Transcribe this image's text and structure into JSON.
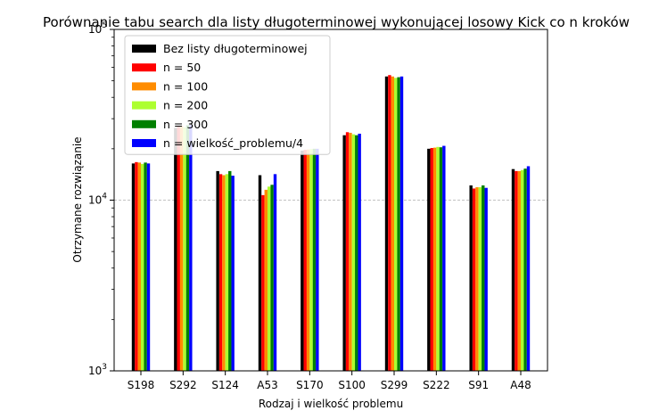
{
  "chart_data": {
    "type": "bar",
    "title": "Porównanie tabu search dla listy długoterminowej wykonującej losowy Kick co n kroków",
    "xlabel": "Rodzaj i wielkość problemu",
    "ylabel": "Otrzymane rozwiązanie",
    "yscale": "log",
    "ylim": [
      1000,
      100000
    ],
    "ytick_labels": [
      {
        "value": 1000,
        "base": "10",
        "exp": "3"
      },
      {
        "value": 10000,
        "base": "10",
        "exp": "4"
      },
      {
        "value": 100000,
        "base": "10",
        "exp": "5"
      }
    ],
    "grid": "horizontal dashed at major ticks",
    "legend_position": "top-left",
    "categories": [
      "S198",
      "S292",
      "S124",
      "A53",
      "S170",
      "S100",
      "S299",
      "S222",
      "S91",
      "A48"
    ],
    "series": [
      {
        "name": "Bez listy długoterminowej",
        "color": "#000000",
        "values": [
          16400,
          26500,
          14800,
          14000,
          19500,
          24000,
          53000,
          20000,
          12200,
          15200
        ]
      },
      {
        "name": "n = 50",
        "color": "#ff0000",
        "values": [
          16700,
          27000,
          14200,
          10700,
          19700,
          25000,
          54000,
          20200,
          11700,
          14800
        ]
      },
      {
        "name": "n = 100",
        "color": "#ff8c00",
        "values": [
          16600,
          27200,
          14000,
          11500,
          19800,
          24800,
          53000,
          20300,
          11900,
          14800
        ]
      },
      {
        "name": "n = 200",
        "color": "#adff2f",
        "values": [
          16300,
          26700,
          14200,
          12000,
          19900,
          24300,
          52000,
          20500,
          11900,
          15000
        ]
      },
      {
        "name": "n = 300",
        "color": "#008000",
        "values": [
          16600,
          27500,
          14800,
          12300,
          20000,
          24000,
          52500,
          20400,
          12200,
          15300
        ]
      },
      {
        "name": "n = wielkość_problemu/4",
        "color": "#0000ff",
        "values": [
          16400,
          27600,
          13900,
          14200,
          20000,
          24500,
          53000,
          20800,
          11800,
          15800
        ]
      }
    ]
  }
}
